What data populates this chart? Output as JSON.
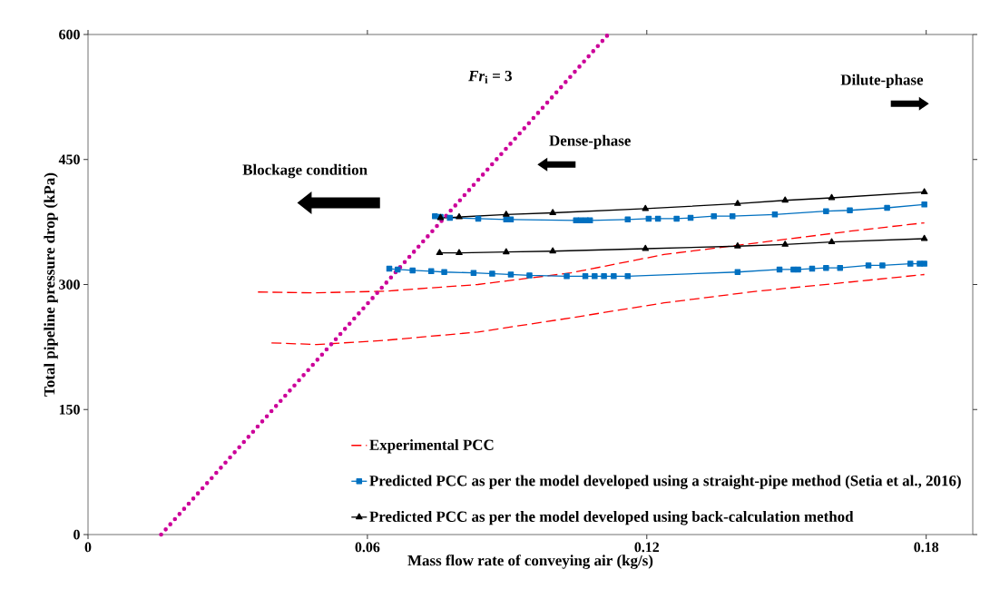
{
  "chart_data": {
    "type": "line",
    "xlabel": "Mass flow rate of conveying air (kg/s)",
    "ylabel": "Total pipeline pressure drop (kPa)",
    "xlim": [
      0,
      0.19
    ],
    "ylim": [
      0,
      600
    ],
    "xticks": [
      0,
      0.06,
      0.12,
      0.18
    ],
    "yticks": [
      0,
      150,
      300,
      450,
      600
    ],
    "grid": false,
    "legend": "bottom right",
    "annotations": [
      "Blockage condition",
      "Dense-phase",
      "Dilute-phase",
      "*Fr*$_{i}$ = 3"
    ],
    "series": [
      {
        "name": "Experimental PCC",
        "color": "#ff0000",
        "line_style": "dashed",
        "marker": "none",
        "x": [
          0.0365,
          0.0485,
          0.0637,
          0.0837,
          0.1037,
          0.1237,
          0.1437,
          0.1637,
          0.1796
        ],
        "values": [
          291,
          290,
          292,
          300,
          314,
          336,
          350,
          364,
          374
        ]
      },
      {
        "color": "#ff0000",
        "line_style": "dashed",
        "marker": "none",
        "x": [
          0.0394,
          0.0491,
          0.0637,
          0.0837,
          0.1037,
          0.1237,
          0.1437,
          0.1637,
          0.1796
        ],
        "values": [
          230,
          228,
          233,
          243,
          260,
          278,
          292,
          303,
          312
        ]
      },
      {
        "name": "Predicted PCC as per the model developed using a straight-pipe method (Setia et al., 2016)",
        "color": "#0070c0",
        "line_style": "solid",
        "marker": "square",
        "x": [
          0.0745,
          0.0757,
          0.0777,
          0.0838,
          0.0898,
          0.0908,
          0.1048,
          0.1058,
          0.1069,
          0.1078,
          0.1159,
          0.1204,
          0.1224,
          0.1264,
          0.1294,
          0.1344,
          0.1384,
          0.1475,
          0.1585,
          0.1636,
          0.1716,
          0.1796
        ],
        "values": [
          382,
          381,
          380,
          379,
          378,
          378,
          377,
          377,
          377,
          377,
          378,
          379,
          379,
          379,
          380,
          382,
          382,
          384,
          388,
          389,
          392,
          396
        ]
      },
      {
        "color": "#0070c0",
        "line_style": "solid",
        "marker": "square",
        "x": [
          0.0647,
          0.0665,
          0.0697,
          0.0737,
          0.0765,
          0.0828,
          0.0868,
          0.0908,
          0.0948,
          0.1028,
          0.1068,
          0.1088,
          0.1108,
          0.1129,
          0.1159,
          0.1395,
          0.1485,
          0.1515,
          0.1525,
          0.1555,
          0.1585,
          0.1615,
          0.1676,
          0.1706,
          0.1766,
          0.1786,
          0.1796
        ],
        "values": [
          319,
          318,
          317,
          316,
          315,
          314,
          313,
          312,
          311,
          310,
          310,
          310,
          310,
          310,
          310,
          315,
          318,
          318,
          318,
          319,
          320,
          320,
          323,
          323,
          325,
          325,
          325
        ]
      },
      {
        "name": "Predicted PCC as per the model developed using back-calculation method",
        "color": "#000000",
        "line_style": "solid",
        "marker": "triangle",
        "x": [
          0.0757,
          0.0797,
          0.0898,
          0.0998,
          0.1197,
          0.1395,
          0.1497,
          0.1597,
          0.1796
        ],
        "values": [
          380,
          381,
          384,
          386,
          391,
          397,
          401,
          404,
          411
        ]
      },
      {
        "color": "#000000",
        "line_style": "solid",
        "marker": "triangle",
        "x": [
          0.0755,
          0.0797,
          0.0898,
          0.0998,
          0.1197,
          0.1395,
          0.1497,
          0.1597,
          0.1796
        ],
        "values": [
          338,
          338,
          339,
          340,
          343,
          346,
          348,
          351,
          355
        ]
      },
      {
        "color": "#cc0099",
        "line_style": "dotted",
        "marker": "none",
        "x": [
          0.0157,
          0.1117
        ],
        "values": [
          0,
          600
        ]
      }
    ]
  }
}
